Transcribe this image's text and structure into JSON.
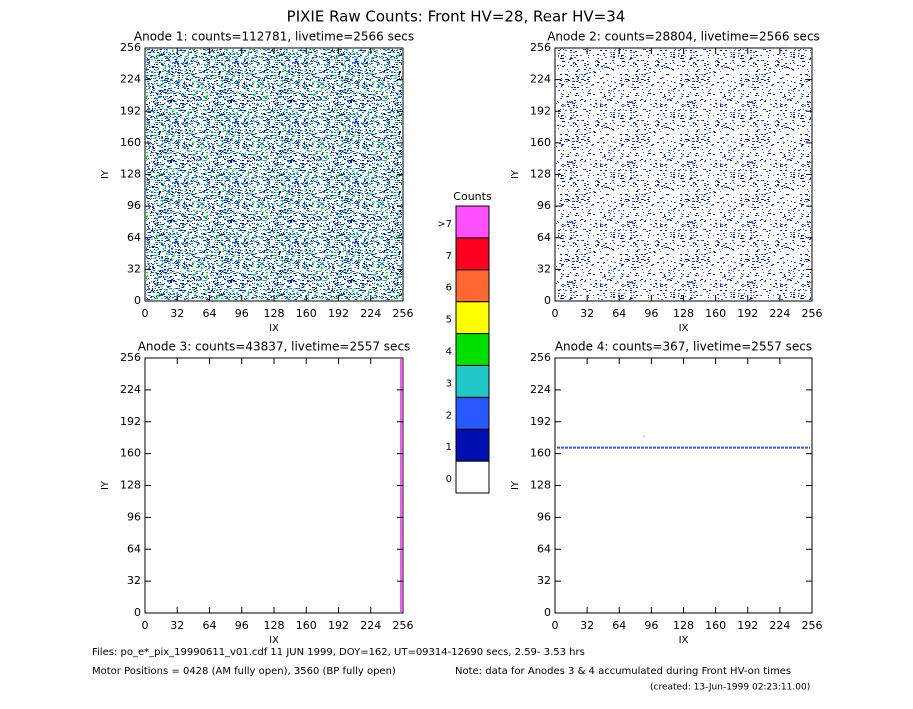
{
  "title": "PIXIE Raw Counts:  Front HV=28, Rear HV=34",
  "chart_data": [
    {
      "type": "heatmap",
      "title": "Anode 1: counts=112781, livetime=2566 secs",
      "xlabel": "IX",
      "ylabel": "IY",
      "xlim": [
        0,
        256
      ],
      "ylim": [
        0,
        256
      ],
      "xticks": [
        0,
        32,
        64,
        96,
        128,
        160,
        192,
        224,
        256
      ],
      "yticks": [
        0,
        32,
        64,
        96,
        128,
        160,
        192,
        224,
        256
      ]
    },
    {
      "type": "heatmap",
      "title": "Anode 2: counts=28804, livetime=2566 secs",
      "xlabel": "IX",
      "ylabel": "IY",
      "xlim": [
        0,
        256
      ],
      "ylim": [
        0,
        256
      ],
      "xticks": [
        0,
        32,
        64,
        96,
        128,
        160,
        192,
        224,
        256
      ],
      "yticks": [
        0,
        32,
        64,
        96,
        128,
        160,
        192,
        224,
        256
      ]
    },
    {
      "type": "heatmap",
      "title": "Anode 3: counts=43837, livetime=2557 secs",
      "xlabel": "IX",
      "ylabel": "IY",
      "xlim": [
        0,
        256
      ],
      "ylim": [
        0,
        256
      ],
      "xticks": [
        0,
        32,
        64,
        96,
        128,
        160,
        192,
        224,
        256
      ],
      "yticks": [
        0,
        32,
        64,
        96,
        128,
        160,
        192,
        224,
        256
      ]
    },
    {
      "type": "heatmap",
      "title": "Anode 4: counts=367, livetime=2557 secs",
      "xlabel": "IX",
      "ylabel": "IY",
      "xlim": [
        0,
        256
      ],
      "ylim": [
        0,
        256
      ],
      "xticks": [
        0,
        32,
        64,
        96,
        128,
        160,
        192,
        224,
        256
      ],
      "yticks": [
        0,
        32,
        64,
        96,
        128,
        160,
        192,
        224,
        256
      ]
    }
  ],
  "colorbar": {
    "title": "Counts",
    "levels": [
      0,
      1,
      2,
      3,
      4,
      5,
      6,
      7,
      {
        "value": 8,
        "label": ">7"
      }
    ],
    "colors": [
      "#ffffff",
      "#0010b0",
      "#2858ff",
      "#20c8c8",
      "#00e000",
      "#ffff00",
      "#ff6830",
      "#ff0020",
      "#ff50ff"
    ]
  },
  "footer": {
    "files": "Files: po_e*_pix_19990611_v01.cdf    11 JUN 1999, DOY=162, UT=09314-12690 secs,  2.59- 3.53 hrs",
    "motor": "Motor Positions = 0428 (AM fully open), 3560 (BP fully open)",
    "note": "Note: data for Anodes 3 & 4 accumulated during Front HV-on times",
    "created": "(created: 13-Jun-1999 02:23:11.00)"
  }
}
